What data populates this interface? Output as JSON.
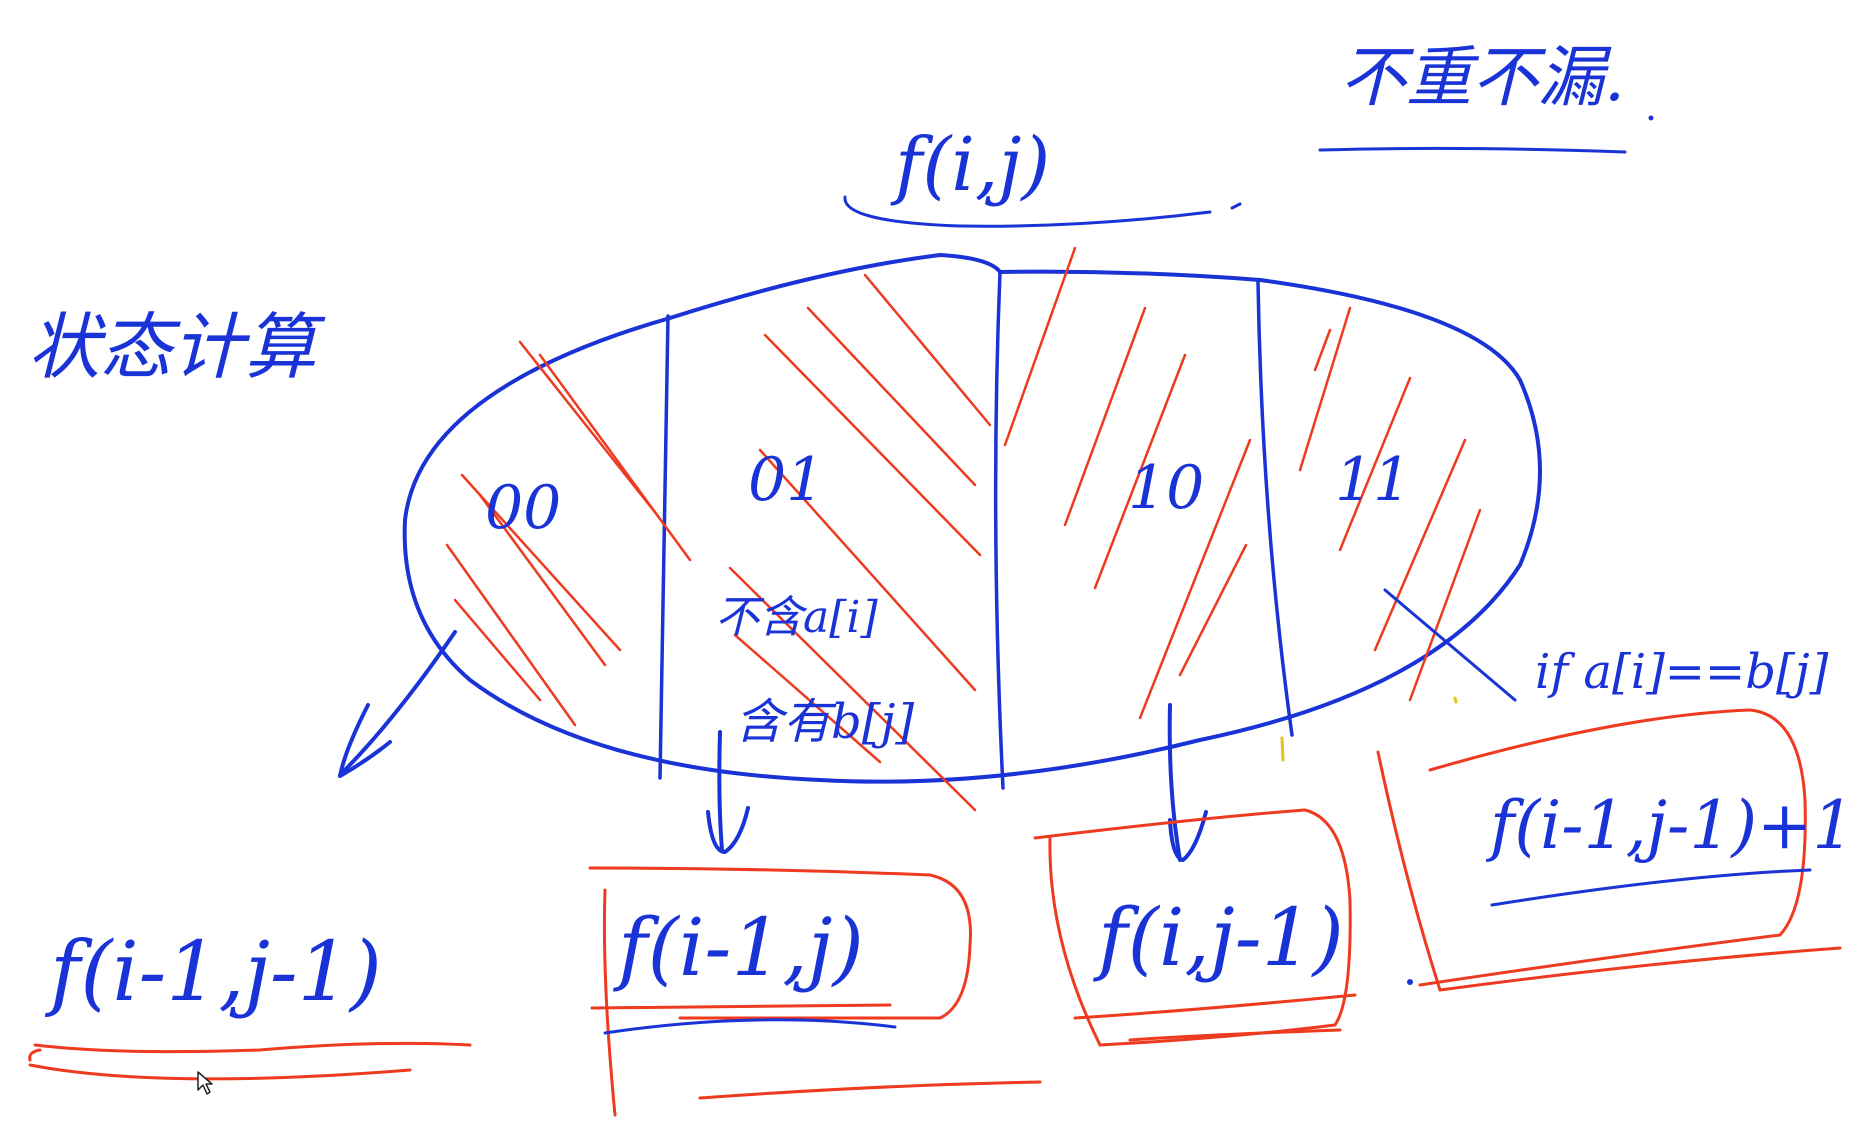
{
  "colors": {
    "blue_ink": "#1a33d6",
    "red_ink": "#ee3a1f",
    "yellow_ink": "#e8c21a",
    "background": "#ffffff"
  },
  "labels": {
    "top_right_note": "不重不漏.",
    "left_note": "状态计算",
    "top_state": "f(i,j)",
    "region_00": "00",
    "region_01": "01",
    "region_10": "10",
    "region_11": "11",
    "note_01_line1": "不含a[i]",
    "note_01_line2": "含有b[j]",
    "condition_11": "if a[i]==b[j]",
    "formula_00": "f(i-1,j-1)",
    "formula_01": "f(i-1,j)",
    "formula_10": "f(i,j-1)",
    "formula_11": "f(i-1,j-1)+1"
  }
}
